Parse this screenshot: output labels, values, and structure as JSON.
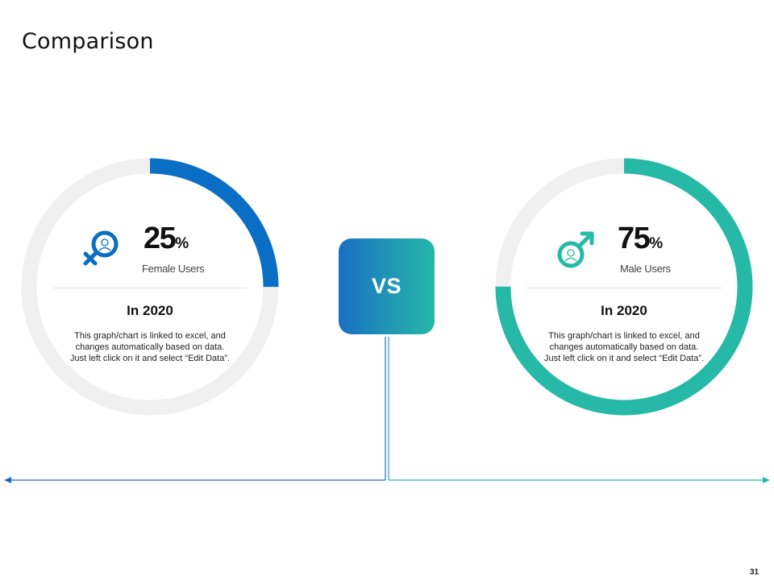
{
  "slide": {
    "title": "Comparison",
    "vs_label": "VS",
    "page_number": "31"
  },
  "colors": {
    "female_accent": "#0a6ec4",
    "male_accent": "#26b9a8",
    "ring_track": "#f0f0f0"
  },
  "female": {
    "icon": "female-user-icon",
    "percent_value": "25",
    "percent_sign": "%",
    "percent_fraction": 0.25,
    "label": "Female Users",
    "year": "In 2020",
    "description": "This graph/chart is linked to excel, and changes automatically based on data. Just left click on it and select “Edit Data”."
  },
  "male": {
    "icon": "male-user-icon",
    "percent_value": "75",
    "percent_sign": "%",
    "percent_fraction": 0.75,
    "label": "Male Users",
    "year": "In 2020",
    "description": "This graph/chart is linked to excel, and changes automatically based on data. Just left click on it and select “Edit Data”."
  }
}
